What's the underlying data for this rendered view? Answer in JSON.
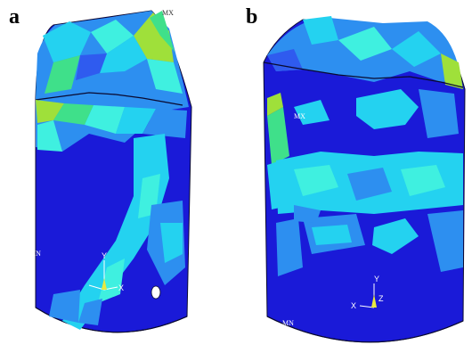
{
  "panels": {
    "a": {
      "letter": "a",
      "max_label": "MX",
      "min_label": "MN",
      "axes": {
        "y": "Y",
        "x": "X"
      }
    },
    "b": {
      "letter": "b",
      "max_label": "MX",
      "min_label": "MN",
      "axes": {
        "y": "Y",
        "x": "X",
        "z": "Z"
      }
    }
  },
  "colors": {
    "deep_blue": "#1a1ad8",
    "blue": "#2f5bef",
    "mid_blue": "#2d8ff0",
    "cyan": "#24d2f0",
    "aqua": "#3ff0e0",
    "green": "#3fe08a",
    "yellow_green": "#9fe03a",
    "outline": "#0a0a30"
  }
}
